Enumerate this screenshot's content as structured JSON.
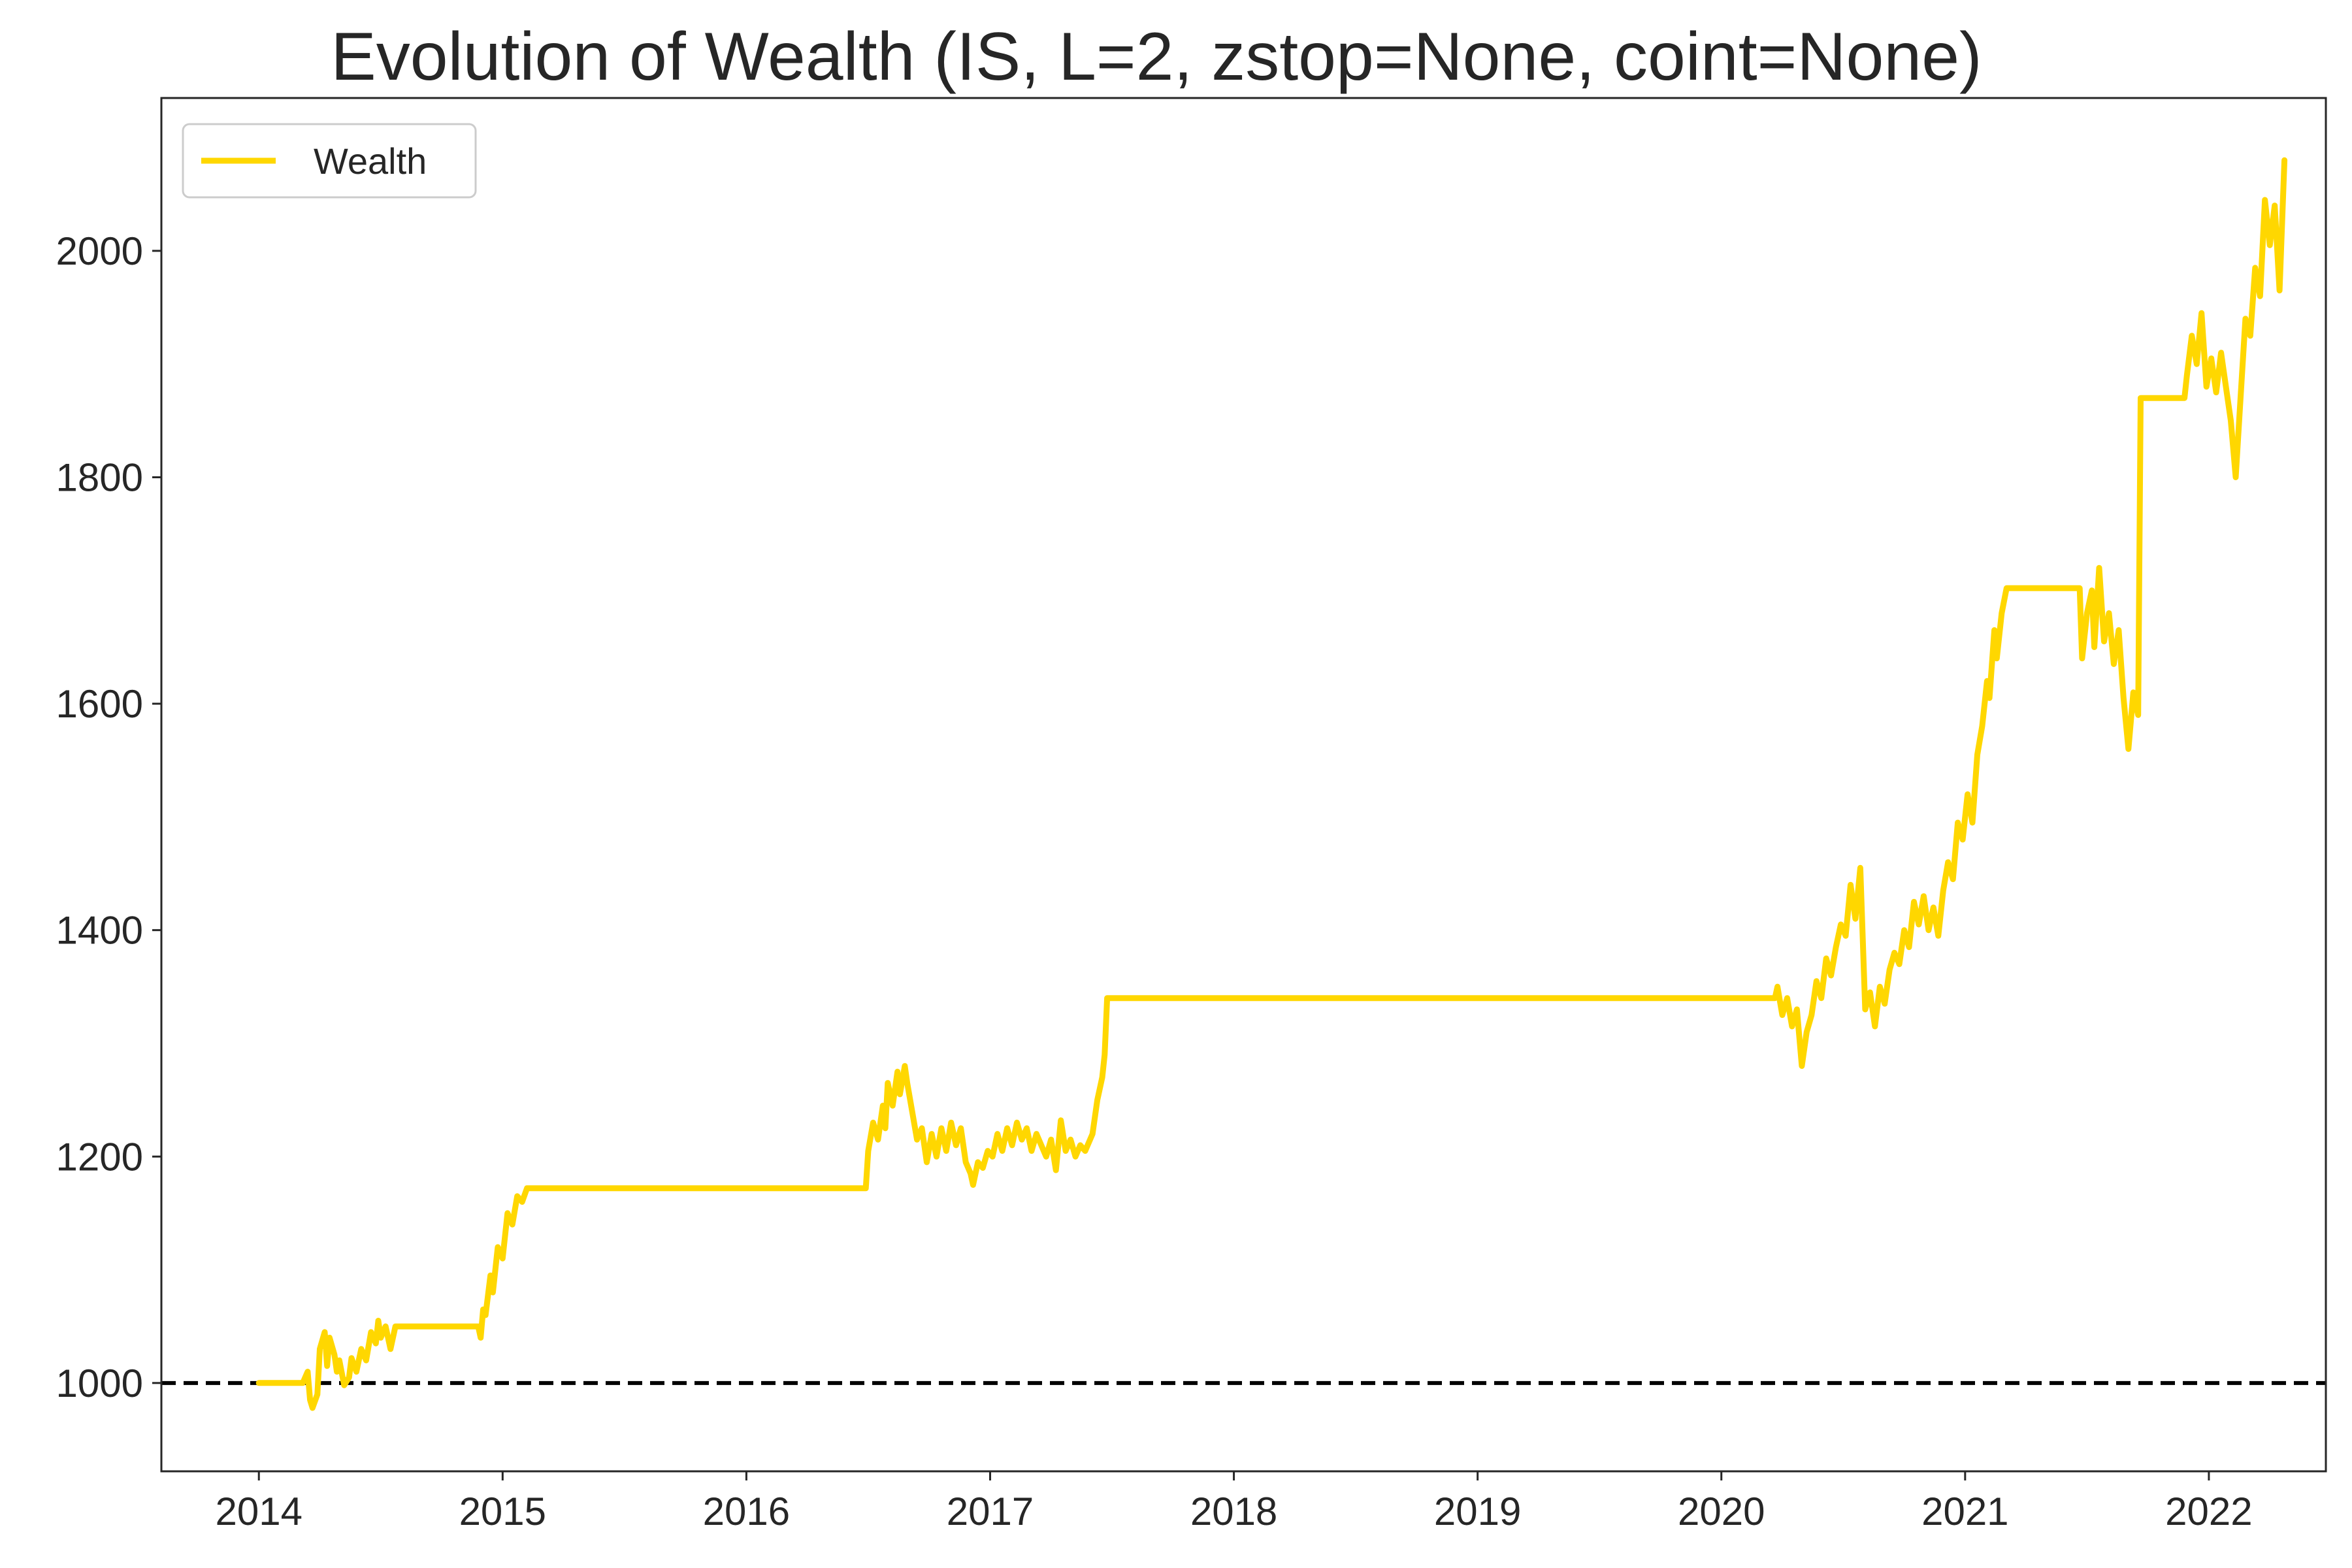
{
  "chart_data": {
    "type": "line",
    "title": "Evolution of Wealth (IS, L=2, zstop=None, coint=None)",
    "xlabel": "",
    "ylabel": "",
    "xlim": [
      2013.6,
      2022.48
    ],
    "ylim": [
      922,
      2135
    ],
    "x_ticks": [
      2014,
      2015,
      2016,
      2017,
      2018,
      2019,
      2020,
      2021,
      2022
    ],
    "x_tick_labels": [
      "2014",
      "2015",
      "2016",
      "2017",
      "2018",
      "2019",
      "2020",
      "2021",
      "2022"
    ],
    "y_ticks": [
      1000,
      1200,
      1400,
      1600,
      1800,
      2000
    ],
    "y_tick_labels": [
      "1000",
      "1200",
      "1400",
      "1600",
      "1800",
      "2000"
    ],
    "grid": false,
    "legend": {
      "position": "top-left",
      "entries": [
        "Wealth"
      ]
    },
    "reference_line": {
      "y": 1000,
      "style": "dashed",
      "color": "#000000"
    },
    "series": [
      {
        "name": "Wealth",
        "color": "#FFD700",
        "points": [
          [
            2014.0,
            1000
          ],
          [
            2014.18,
            1000
          ],
          [
            2014.2,
            1010
          ],
          [
            2014.21,
            985
          ],
          [
            2014.22,
            978
          ],
          [
            2014.24,
            990
          ],
          [
            2014.25,
            1030
          ],
          [
            2014.27,
            1045
          ],
          [
            2014.28,
            1015
          ],
          [
            2014.29,
            1040
          ],
          [
            2014.31,
            1025
          ],
          [
            2014.32,
            1010
          ],
          [
            2014.33,
            1020
          ],
          [
            2014.35,
            998
          ],
          [
            2014.37,
            1005
          ],
          [
            2014.38,
            1022
          ],
          [
            2014.4,
            1010
          ],
          [
            2014.42,
            1030
          ],
          [
            2014.44,
            1020
          ],
          [
            2014.46,
            1045
          ],
          [
            2014.48,
            1035
          ],
          [
            2014.49,
            1055
          ],
          [
            2014.5,
            1040
          ],
          [
            2014.52,
            1050
          ],
          [
            2014.54,
            1030
          ],
          [
            2014.56,
            1050
          ],
          [
            2014.6,
            1050
          ],
          [
            2014.9,
            1050
          ],
          [
            2014.91,
            1040
          ],
          [
            2014.92,
            1065
          ],
          [
            2014.93,
            1060
          ],
          [
            2014.95,
            1095
          ],
          [
            2014.96,
            1080
          ],
          [
            2014.98,
            1120
          ],
          [
            2015.0,
            1110
          ],
          [
            2015.02,
            1150
          ],
          [
            2015.04,
            1140
          ],
          [
            2015.06,
            1165
          ],
          [
            2015.08,
            1160
          ],
          [
            2015.1,
            1172
          ],
          [
            2015.3,
            1172
          ],
          [
            2016.0,
            1172
          ],
          [
            2016.49,
            1172
          ],
          [
            2016.5,
            1205
          ],
          [
            2016.52,
            1230
          ],
          [
            2016.54,
            1215
          ],
          [
            2016.56,
            1245
          ],
          [
            2016.57,
            1225
          ],
          [
            2016.58,
            1265
          ],
          [
            2016.6,
            1245
          ],
          [
            2016.62,
            1275
          ],
          [
            2016.63,
            1255
          ],
          [
            2016.65,
            1280
          ],
          [
            2016.66,
            1265
          ],
          [
            2016.68,
            1240
          ],
          [
            2016.7,
            1215
          ],
          [
            2016.72,
            1225
          ],
          [
            2016.74,
            1195
          ],
          [
            2016.76,
            1220
          ],
          [
            2016.78,
            1200
          ],
          [
            2016.8,
            1225
          ],
          [
            2016.82,
            1205
          ],
          [
            2016.84,
            1230
          ],
          [
            2016.86,
            1210
          ],
          [
            2016.88,
            1225
          ],
          [
            2016.9,
            1195
          ],
          [
            2016.92,
            1185
          ],
          [
            2016.93,
            1175
          ],
          [
            2016.95,
            1195
          ],
          [
            2016.97,
            1190
          ],
          [
            2016.99,
            1205
          ],
          [
            2017.01,
            1200
          ],
          [
            2017.03,
            1220
          ],
          [
            2017.05,
            1205
          ],
          [
            2017.07,
            1225
          ],
          [
            2017.09,
            1210
          ],
          [
            2017.11,
            1230
          ],
          [
            2017.13,
            1215
          ],
          [
            2017.15,
            1225
          ],
          [
            2017.17,
            1205
          ],
          [
            2017.19,
            1220
          ],
          [
            2017.21,
            1210
          ],
          [
            2017.23,
            1200
          ],
          [
            2017.25,
            1215
          ],
          [
            2017.27,
            1188
          ],
          [
            2017.29,
            1232
          ],
          [
            2017.31,
            1205
          ],
          [
            2017.33,
            1215
          ],
          [
            2017.35,
            1200
          ],
          [
            2017.37,
            1210
          ],
          [
            2017.39,
            1205
          ],
          [
            2017.42,
            1220
          ],
          [
            2017.44,
            1250
          ],
          [
            2017.46,
            1270
          ],
          [
            2017.47,
            1290
          ],
          [
            2017.48,
            1340
          ],
          [
            2017.7,
            1340
          ],
          [
            2018.0,
            1340
          ],
          [
            2019.0,
            1340
          ],
          [
            2020.0,
            1340
          ],
          [
            2020.22,
            1340
          ],
          [
            2020.23,
            1350
          ],
          [
            2020.25,
            1325
          ],
          [
            2020.27,
            1340
          ],
          [
            2020.29,
            1315
          ],
          [
            2020.31,
            1330
          ],
          [
            2020.33,
            1280
          ],
          [
            2020.35,
            1310
          ],
          [
            2020.37,
            1325
          ],
          [
            2020.39,
            1355
          ],
          [
            2020.41,
            1340
          ],
          [
            2020.43,
            1375
          ],
          [
            2020.45,
            1360
          ],
          [
            2020.47,
            1385
          ],
          [
            2020.49,
            1405
          ],
          [
            2020.51,
            1395
          ],
          [
            2020.53,
            1440
          ],
          [
            2020.55,
            1410
          ],
          [
            2020.57,
            1455
          ],
          [
            2020.59,
            1330
          ],
          [
            2020.61,
            1345
          ],
          [
            2020.63,
            1315
          ],
          [
            2020.65,
            1350
          ],
          [
            2020.67,
            1335
          ],
          [
            2020.69,
            1365
          ],
          [
            2020.71,
            1380
          ],
          [
            2020.73,
            1370
          ],
          [
            2020.75,
            1400
          ],
          [
            2020.77,
            1385
          ],
          [
            2020.79,
            1425
          ],
          [
            2020.81,
            1405
          ],
          [
            2020.83,
            1430
          ],
          [
            2020.85,
            1400
          ],
          [
            2020.87,
            1420
          ],
          [
            2020.89,
            1395
          ],
          [
            2020.91,
            1435
          ],
          [
            2020.93,
            1460
          ],
          [
            2020.95,
            1445
          ],
          [
            2020.97,
            1495
          ],
          [
            2020.99,
            1480
          ],
          [
            2021.01,
            1520
          ],
          [
            2021.03,
            1495
          ],
          [
            2021.05,
            1555
          ],
          [
            2021.07,
            1580
          ],
          [
            2021.09,
            1620
          ],
          [
            2021.1,
            1605
          ],
          [
            2021.12,
            1665
          ],
          [
            2021.13,
            1640
          ],
          [
            2021.15,
            1680
          ],
          [
            2021.17,
            1702
          ],
          [
            2021.3,
            1702
          ],
          [
            2021.47,
            1702
          ],
          [
            2021.48,
            1640
          ],
          [
            2021.5,
            1680
          ],
          [
            2021.52,
            1700
          ],
          [
            2021.53,
            1650
          ],
          [
            2021.55,
            1720
          ],
          [
            2021.57,
            1655
          ],
          [
            2021.59,
            1680
          ],
          [
            2021.61,
            1635
          ],
          [
            2021.63,
            1665
          ],
          [
            2021.65,
            1605
          ],
          [
            2021.67,
            1560
          ],
          [
            2021.69,
            1610
          ],
          [
            2021.71,
            1590
          ],
          [
            2021.72,
            1870
          ],
          [
            2021.8,
            1870
          ],
          [
            2021.9,
            1870
          ],
          [
            2021.91,
            1890
          ],
          [
            2021.93,
            1925
          ],
          [
            2021.95,
            1900
          ],
          [
            2021.97,
            1945
          ],
          [
            2021.99,
            1880
          ],
          [
            2022.01,
            1905
          ],
          [
            2022.03,
            1875
          ],
          [
            2022.05,
            1910
          ],
          [
            2022.07,
            1880
          ],
          [
            2022.09,
            1850
          ],
          [
            2022.11,
            1800
          ],
          [
            2022.13,
            1870
          ],
          [
            2022.15,
            1940
          ],
          [
            2022.17,
            1925
          ],
          [
            2022.19,
            1985
          ],
          [
            2022.21,
            1960
          ],
          [
            2022.23,
            2045
          ],
          [
            2022.25,
            2005
          ],
          [
            2022.27,
            2040
          ],
          [
            2022.29,
            1965
          ],
          [
            2022.31,
            2080
          ]
        ]
      }
    ]
  }
}
